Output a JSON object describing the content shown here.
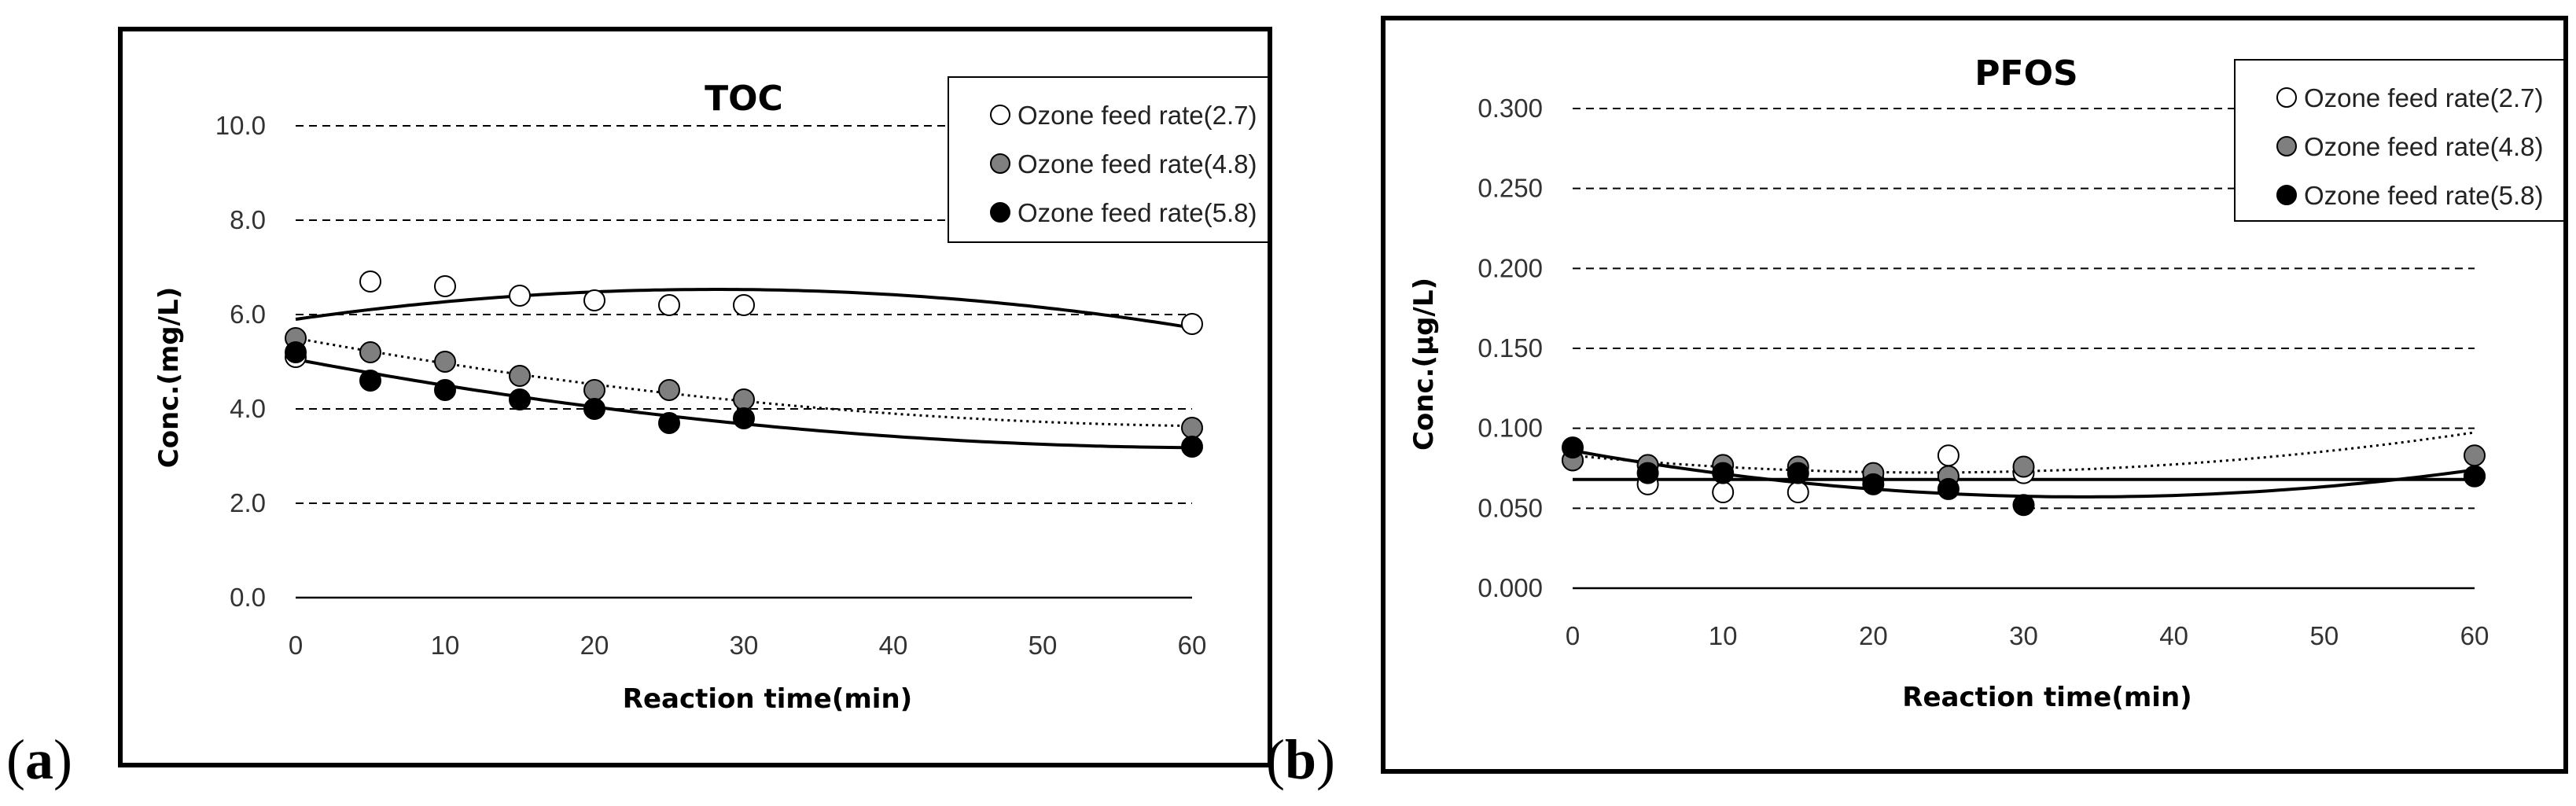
{
  "chart_data": [
    {
      "panel": "(a)",
      "type": "scatter",
      "title": "TOC",
      "xlabel": "Reaction time(min)",
      "ylabel": "Conc.(mg/L)",
      "xlim": [
        0,
        60
      ],
      "ylim": [
        0,
        10
      ],
      "x_ticks": [
        0,
        10,
        20,
        30,
        40,
        50,
        60
      ],
      "y_ticks": [
        "0.0",
        "2.0",
        "4.0",
        "6.0",
        "8.0",
        "10.0"
      ],
      "grid": "horizontal-dashed",
      "legend_position": "top-right",
      "series": [
        {
          "name": "Ozone feed rate(2.7)",
          "marker": "open",
          "x": [
            0,
            5,
            10,
            15,
            20,
            25,
            30,
            60
          ],
          "y": [
            5.1,
            6.7,
            6.6,
            6.4,
            6.3,
            6.2,
            6.2,
            5.8
          ],
          "trend": {
            "style": "solid",
            "coef": [
              5.9,
              0.045,
              -0.0008
            ]
          }
        },
        {
          "name": "Ozone feed rate(4.8)",
          "marker": "gray",
          "x": [
            0,
            5,
            10,
            15,
            20,
            25,
            30,
            60
          ],
          "y": [
            5.5,
            5.2,
            5.0,
            4.7,
            4.4,
            4.4,
            4.2,
            3.6
          ],
          "trend": {
            "style": "dotted",
            "coef": [
              5.5,
              -0.058,
              0.00045
            ]
          }
        },
        {
          "name": "Ozone feed rate(5.8)",
          "marker": "black",
          "x": [
            0,
            5,
            10,
            15,
            20,
            25,
            30,
            60
          ],
          "y": [
            5.2,
            4.6,
            4.4,
            4.2,
            4.0,
            3.7,
            3.8,
            3.2
          ],
          "trend": {
            "style": "solid",
            "coef": [
              5.05,
              -0.06,
              0.00048
            ]
          }
        }
      ]
    },
    {
      "panel": "(b)",
      "type": "scatter",
      "title": "PFOS",
      "xlabel": "Reaction time(min)",
      "ylabel": "Conc.(μg/L)",
      "xlim": [
        0,
        60
      ],
      "ylim": [
        0,
        0.3
      ],
      "x_ticks": [
        0,
        10,
        20,
        30,
        40,
        50,
        60
      ],
      "y_ticks": [
        "0.000",
        "0.050",
        "0.100",
        "0.150",
        "0.200",
        "0.250",
        "0.300"
      ],
      "grid": "horizontal-dashed",
      "legend_position": "top-right",
      "series": [
        {
          "name": "Ozone feed rate(2.7)",
          "marker": "open",
          "x": [
            0,
            5,
            10,
            15,
            20,
            25,
            30,
            60
          ],
          "y": [
            0.08,
            0.065,
            0.06,
            0.06,
            0.068,
            0.083,
            0.072,
            0.07
          ],
          "trend": {
            "style": "solid",
            "coef": [
              0.068,
              0.0,
              0.0
            ]
          }
        },
        {
          "name": "Ozone feed rate(4.8)",
          "marker": "gray",
          "x": [
            0,
            5,
            10,
            15,
            20,
            25,
            30,
            60
          ],
          "y": [
            0.08,
            0.077,
            0.077,
            0.076,
            0.072,
            0.07,
            0.076,
            0.083
          ],
          "trend": {
            "style": "dotted",
            "coef": [
              0.083,
              -0.0009,
              1.9e-05
            ]
          }
        },
        {
          "name": "Ozone feed rate(5.8)",
          "marker": "black",
          "x": [
            0,
            5,
            10,
            15,
            20,
            25,
            30,
            60
          ],
          "y": [
            0.088,
            0.072,
            0.072,
            0.072,
            0.065,
            0.062,
            0.052,
            0.07
          ],
          "trend": {
            "style": "solid",
            "coef": [
              0.086,
              -0.0017,
              2.5e-05
            ]
          }
        }
      ]
    }
  ],
  "panel_labels": [
    "(a)",
    "(b)"
  ],
  "colors": {
    "open_fill": "#ffffff",
    "gray_fill": "#7f7f7f",
    "black_fill": "#000000",
    "grid": "#000000"
  }
}
